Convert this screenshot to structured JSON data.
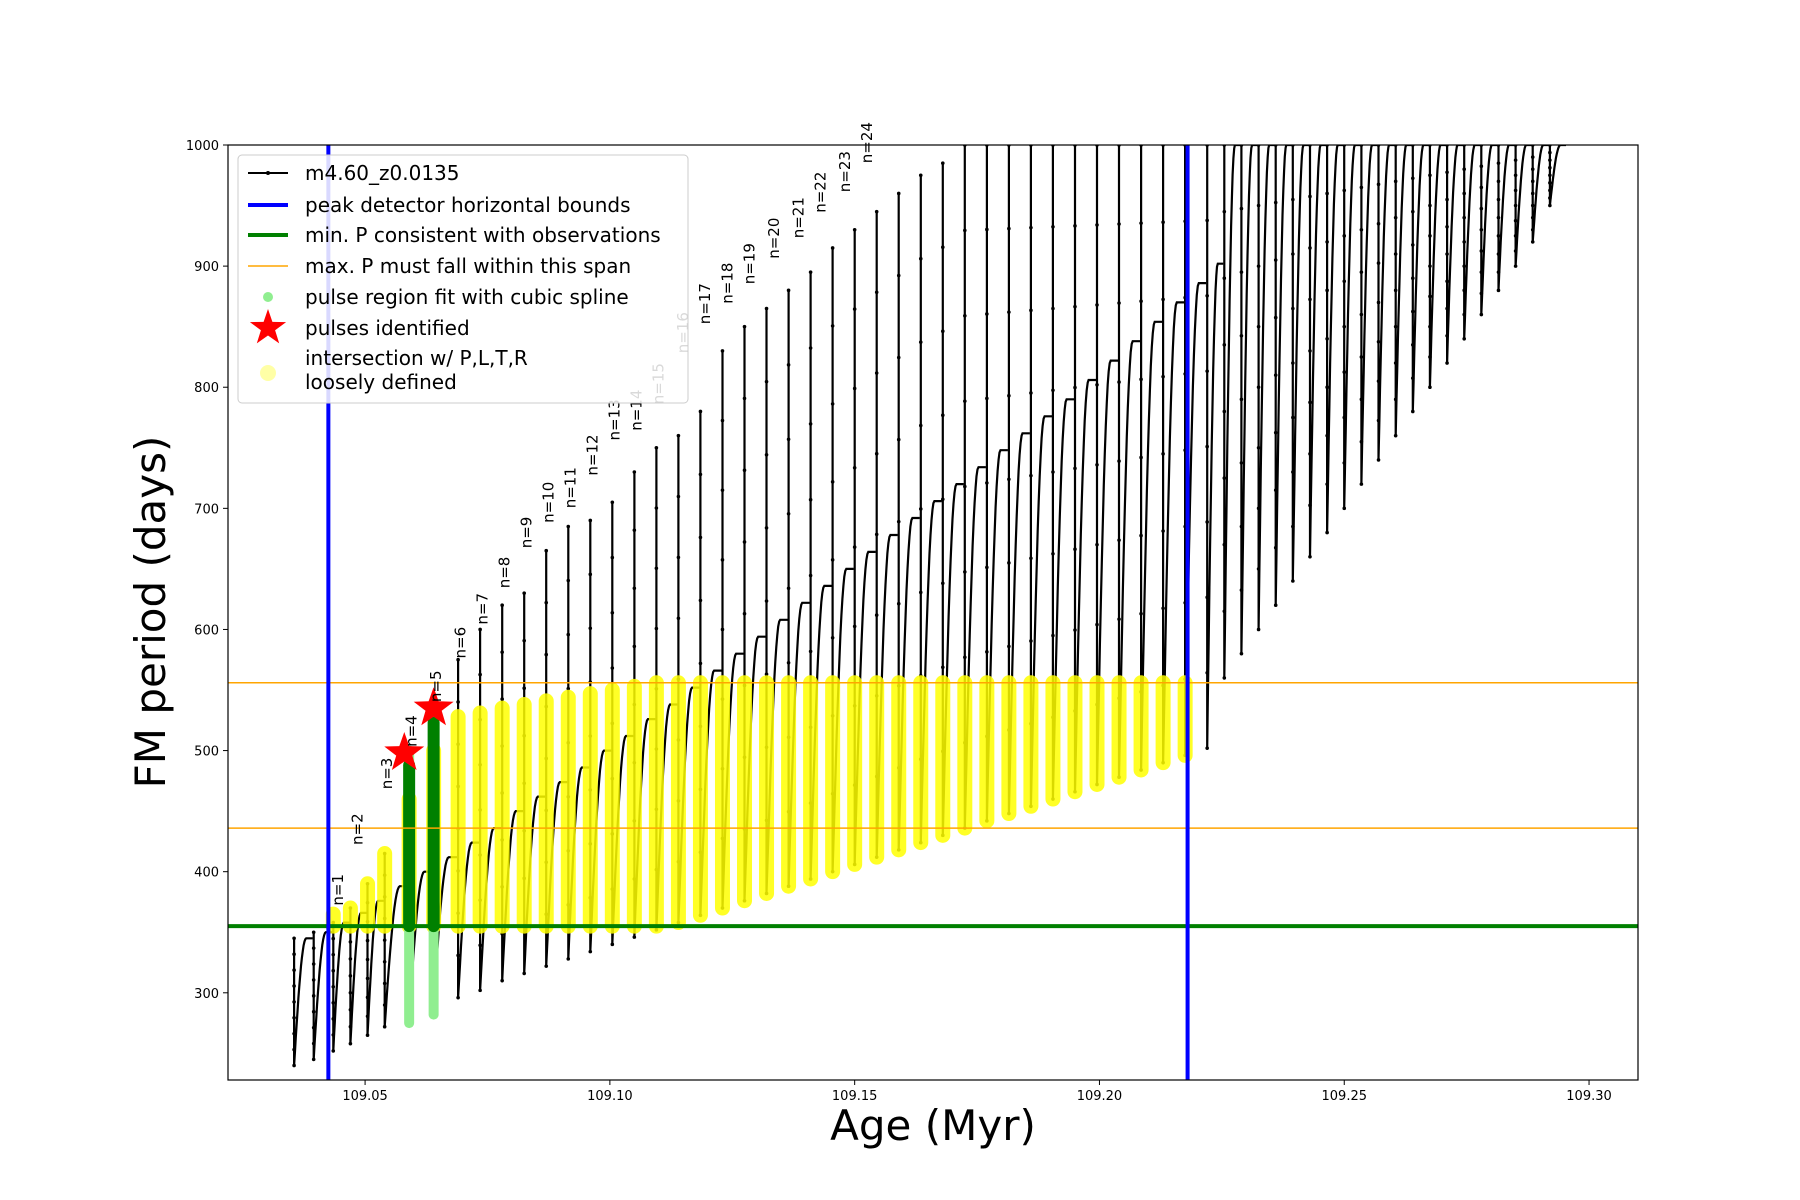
{
  "chart_data": {
    "type": "line",
    "xlabel": "Age (Myr)",
    "ylabel": "FM period (days)",
    "xlim": [
      109.022,
      109.31
    ],
    "ylim": [
      228,
      1000
    ],
    "xticks": [
      {
        "value": 109.05,
        "label": "109.05"
      },
      {
        "value": 109.1,
        "label": "109.10"
      },
      {
        "value": 109.15,
        "label": "109.15"
      },
      {
        "value": 109.2,
        "label": "109.20"
      },
      {
        "value": 109.25,
        "label": "109.25"
      },
      {
        "value": 109.3,
        "label": "109.30"
      }
    ],
    "yticks": [
      {
        "value": 300,
        "label": "300"
      },
      {
        "value": 400,
        "label": "400"
      },
      {
        "value": 500,
        "label": "500"
      },
      {
        "value": 600,
        "label": "600"
      },
      {
        "value": 700,
        "label": "700"
      },
      {
        "value": 800,
        "label": "800"
      },
      {
        "value": 900,
        "label": "900"
      },
      {
        "value": 1000,
        "label": "1000"
      }
    ],
    "model_track": {
      "name": "m4.60_z0.0135",
      "color": "#000000",
      "pulse_ages": [
        109.0355,
        109.0395,
        109.0435,
        109.047,
        109.0505,
        109.054,
        109.059,
        109.064,
        109.069,
        109.0735,
        109.078,
        109.0825,
        109.087,
        109.0915,
        109.096,
        109.1005,
        109.105,
        109.1095,
        109.114,
        109.1185,
        109.123,
        109.1275,
        109.132,
        109.1365,
        109.141,
        109.1455,
        109.15,
        109.1545,
        109.159,
        109.1635,
        109.168,
        109.1725,
        109.177,
        109.1815,
        109.186,
        109.1905,
        109.195,
        109.1995,
        109.204,
        109.2085,
        109.213,
        109.2175,
        109.222,
        109.2255,
        109.229,
        109.2325,
        109.236,
        109.2395,
        109.243,
        109.2465,
        109.25,
        109.2535,
        109.257,
        109.2605,
        109.264,
        109.2675,
        109.271,
        109.2745,
        109.278,
        109.2815,
        109.285,
        109.2885,
        109.292
      ],
      "pulse_base": [
        240,
        245,
        252,
        258,
        265,
        272,
        280,
        290,
        296,
        302,
        310,
        316,
        322,
        328,
        334,
        340,
        346,
        352,
        358,
        364,
        370,
        376,
        382,
        388,
        394,
        400,
        406,
        412,
        418,
        424,
        430,
        436,
        442,
        448,
        454,
        460,
        466,
        472,
        478,
        484,
        490,
        496,
        502,
        560,
        580,
        600,
        620,
        640,
        660,
        680,
        700,
        720,
        740,
        760,
        780,
        800,
        820,
        840,
        860,
        880,
        900,
        920,
        950
      ],
      "pulse_peak": [
        345,
        350,
        358,
        370,
        390,
        415,
        460,
        500,
        575,
        600,
        620,
        630,
        665,
        685,
        690,
        705,
        730,
        750,
        760,
        780,
        830,
        850,
        865,
        880,
        895,
        915,
        930,
        945,
        960,
        975,
        985,
        1000,
        1000,
        1000,
        1000,
        1000,
        1000,
        1000,
        1000,
        1000,
        1000,
        1000,
        1000,
        1000,
        1000,
        1000,
        1000,
        1000,
        1000,
        1000,
        1000,
        1000,
        1000,
        1000,
        1000,
        1000,
        1000,
        1000,
        1000,
        1000,
        1000,
        1000,
        1000
      ],
      "pulse_plateau": [
        345,
        350,
        358,
        366,
        376,
        388,
        400,
        412,
        424,
        436,
        450,
        462,
        474,
        486,
        500,
        512,
        526,
        538,
        552,
        566,
        580,
        594,
        608,
        622,
        636,
        650,
        664,
        678,
        692,
        706,
        720,
        734,
        748,
        762,
        776,
        790,
        806,
        822,
        838,
        854,
        870,
        886,
        902,
        1000,
        1000,
        1000,
        1000,
        1000,
        1000,
        1000,
        1000,
        1000,
        1000,
        1000,
        1000,
        1000,
        1000,
        1000,
        1000,
        1000,
        1000,
        1000,
        1000
      ]
    },
    "detector_bounds": {
      "name": "peak detector horizontal bounds",
      "color": "#0000ff",
      "x": [
        109.0425,
        109.218
      ]
    },
    "min_period": {
      "name": "min. P consistent with observations",
      "color": "#008000",
      "y": 355
    },
    "max_period_span": {
      "name": "max. P must fall within this span",
      "color": "#ffa500",
      "y": [
        436,
        556
      ]
    },
    "spline_regions": {
      "name": "pulse region fit with cubic spline",
      "color": "#90ee90",
      "green_color": "#008000",
      "segments": [
        {
          "x": 109.059,
          "low": 275,
          "high": 500
        },
        {
          "x": 109.064,
          "low": 282,
          "high": 535
        }
      ]
    },
    "pulses_identified": {
      "name": "pulses identified",
      "color": "#ff0000",
      "points": [
        {
          "x": 109.058,
          "y": 498
        },
        {
          "x": 109.064,
          "y": 535
        }
      ]
    },
    "intersection": {
      "name": "intersection w/ P,L,T,R\nloosely defined",
      "color": "#ffff00"
    },
    "pulse_labels": [
      {
        "label": "n=1",
        "x": 109.0455,
        "y": 372
      },
      {
        "label": "n=2",
        "x": 109.0495,
        "y": 422
      },
      {
        "label": "n=3",
        "x": 109.0555,
        "y": 468
      },
      {
        "label": "n=4",
        "x": 109.0605,
        "y": 503
      },
      {
        "label": "n=5",
        "x": 109.0655,
        "y": 540
      },
      {
        "label": "n=6",
        "x": 109.0705,
        "y": 576
      },
      {
        "label": "n=7",
        "x": 109.075,
        "y": 604
      },
      {
        "label": "n=8",
        "x": 109.0795,
        "y": 634
      },
      {
        "label": "n=9",
        "x": 109.084,
        "y": 667
      },
      {
        "label": "n=10",
        "x": 109.0885,
        "y": 688
      },
      {
        "label": "n=11",
        "x": 109.093,
        "y": 700
      },
      {
        "label": "n=12",
        "x": 109.0975,
        "y": 727
      },
      {
        "label": "n=13",
        "x": 109.102,
        "y": 756
      },
      {
        "label": "n=14",
        "x": 109.1065,
        "y": 764
      },
      {
        "label": "n=15",
        "x": 109.111,
        "y": 786
      },
      {
        "label": "n=16",
        "x": 109.116,
        "y": 828
      },
      {
        "label": "n=17",
        "x": 109.1205,
        "y": 852
      },
      {
        "label": "n=18",
        "x": 109.125,
        "y": 869
      },
      {
        "label": "n=19",
        "x": 109.1295,
        "y": 885
      },
      {
        "label": "n=20",
        "x": 109.1345,
        "y": 906
      },
      {
        "label": "n=21",
        "x": 109.1395,
        "y": 923
      },
      {
        "label": "n=22",
        "x": 109.144,
        "y": 944
      },
      {
        "label": "n=23",
        "x": 109.149,
        "y": 961
      },
      {
        "label": "n=24",
        "x": 109.1535,
        "y": 985
      }
    ]
  }
}
